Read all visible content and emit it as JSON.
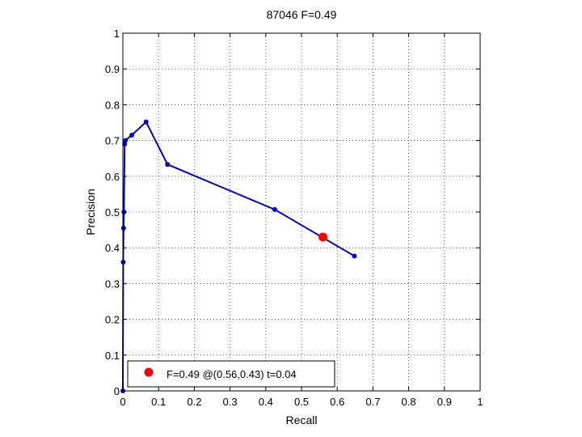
{
  "chart_data": {
    "type": "line",
    "title": "87046 F=0.49",
    "xlabel": "Recall",
    "ylabel": "Precision",
    "xlim": [
      0,
      1
    ],
    "ylim": [
      0,
      1
    ],
    "x_ticks": [
      "0",
      "0.1",
      "0.2",
      "0.3",
      "0.4",
      "0.5",
      "0.6",
      "0.7",
      "0.8",
      "0.9",
      "1"
    ],
    "y_ticks": [
      "0",
      "0.1",
      "0.2",
      "0.3",
      "0.4",
      "0.5",
      "0.6",
      "0.7",
      "0.8",
      "0.9",
      "1"
    ],
    "grid": true,
    "grid_style": "dotted",
    "series": [
      {
        "color": "#0000cc",
        "x": [
          0.0,
          0.001,
          0.002,
          0.003,
          0.005,
          0.007,
          0.025,
          0.065,
          0.125,
          0.425,
          0.648
        ],
        "y": [
          0.0,
          0.36,
          0.455,
          0.5,
          0.69,
          0.7,
          0.715,
          0.752,
          0.633,
          0.507,
          0.377
        ]
      }
    ],
    "highlight_point": {
      "x": 0.56,
      "y": 0.43,
      "color": "#ff0000"
    },
    "legend": {
      "position": "bottom-left",
      "entries": [
        {
          "label": "F=0.49 @(0.56,0.43) t=0.04",
          "color": "#ff0000"
        }
      ]
    }
  }
}
